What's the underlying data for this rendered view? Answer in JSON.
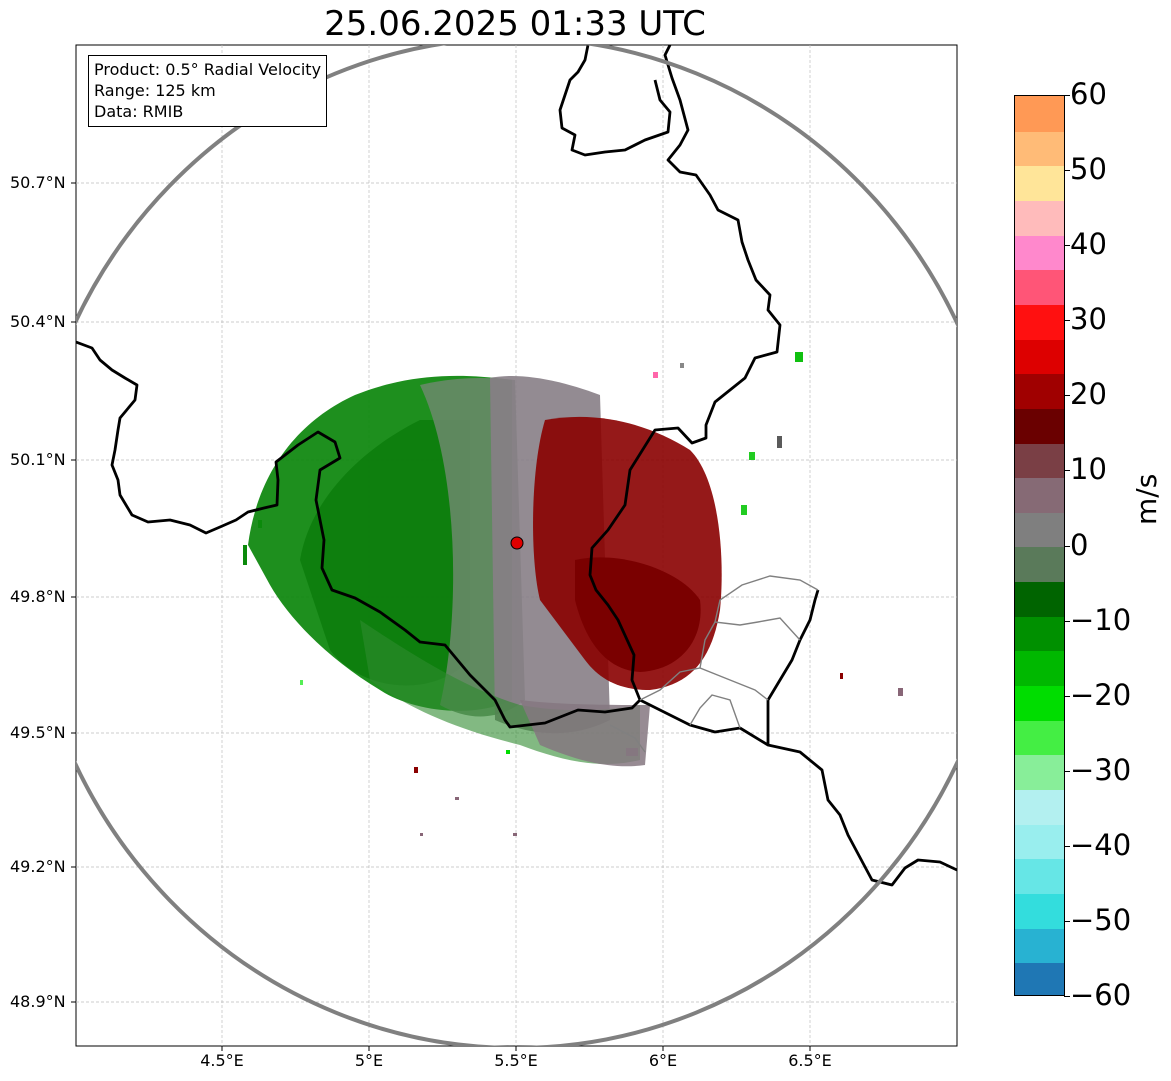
{
  "title": "25.06.2025 01:33 UTC",
  "info": {
    "product": "Product: 0.5° Radial Velocity",
    "range": "Range: 125 km",
    "source": "Data: RMIB"
  },
  "axes": {
    "lat_ticks": [
      "50.7°N",
      "50.4°N",
      "50.1°N",
      "49.8°N",
      "49.5°N",
      "49.2°N",
      "48.9°N"
    ],
    "lon_ticks": [
      "4.5°E",
      "5°E",
      "5.5°E",
      "6°E",
      "6.5°E"
    ]
  },
  "radar": {
    "site_lon": 5.5,
    "site_lat": 49.91,
    "range_km": 125
  },
  "colorbar": {
    "unit": "m/s",
    "min": -60,
    "max": 60,
    "ticks": [
      "60",
      "50",
      "40",
      "30",
      "20",
      "10",
      "0",
      "−10",
      "−20",
      "−30",
      "−40",
      "−50",
      "−60"
    ],
    "stops": [
      "#1f77b4",
      "#28b2d2",
      "#33dddd",
      "#66e6e6",
      "#99eeee",
      "#b3f0f0",
      "#88ee99",
      "#44ee44",
      "#00dd00",
      "#00b800",
      "#009000",
      "#006400",
      "#5a7a5a",
      "#7f7f7f",
      "#866a75",
      "#7a3f45",
      "#6a0000",
      "#a00000",
      "#dd0000",
      "#ff1010",
      "#ff5577",
      "#ff88cc",
      "#ffbbbb",
      "#ffe599",
      "#ffbb77",
      "#ff9955"
    ]
  },
  "colors": {
    "inbound_green": "#0b8a0b",
    "outbound_red": "#8b0000",
    "near_zero_gray": "#857780",
    "border": "#000000",
    "range_ring": "#808080"
  }
}
